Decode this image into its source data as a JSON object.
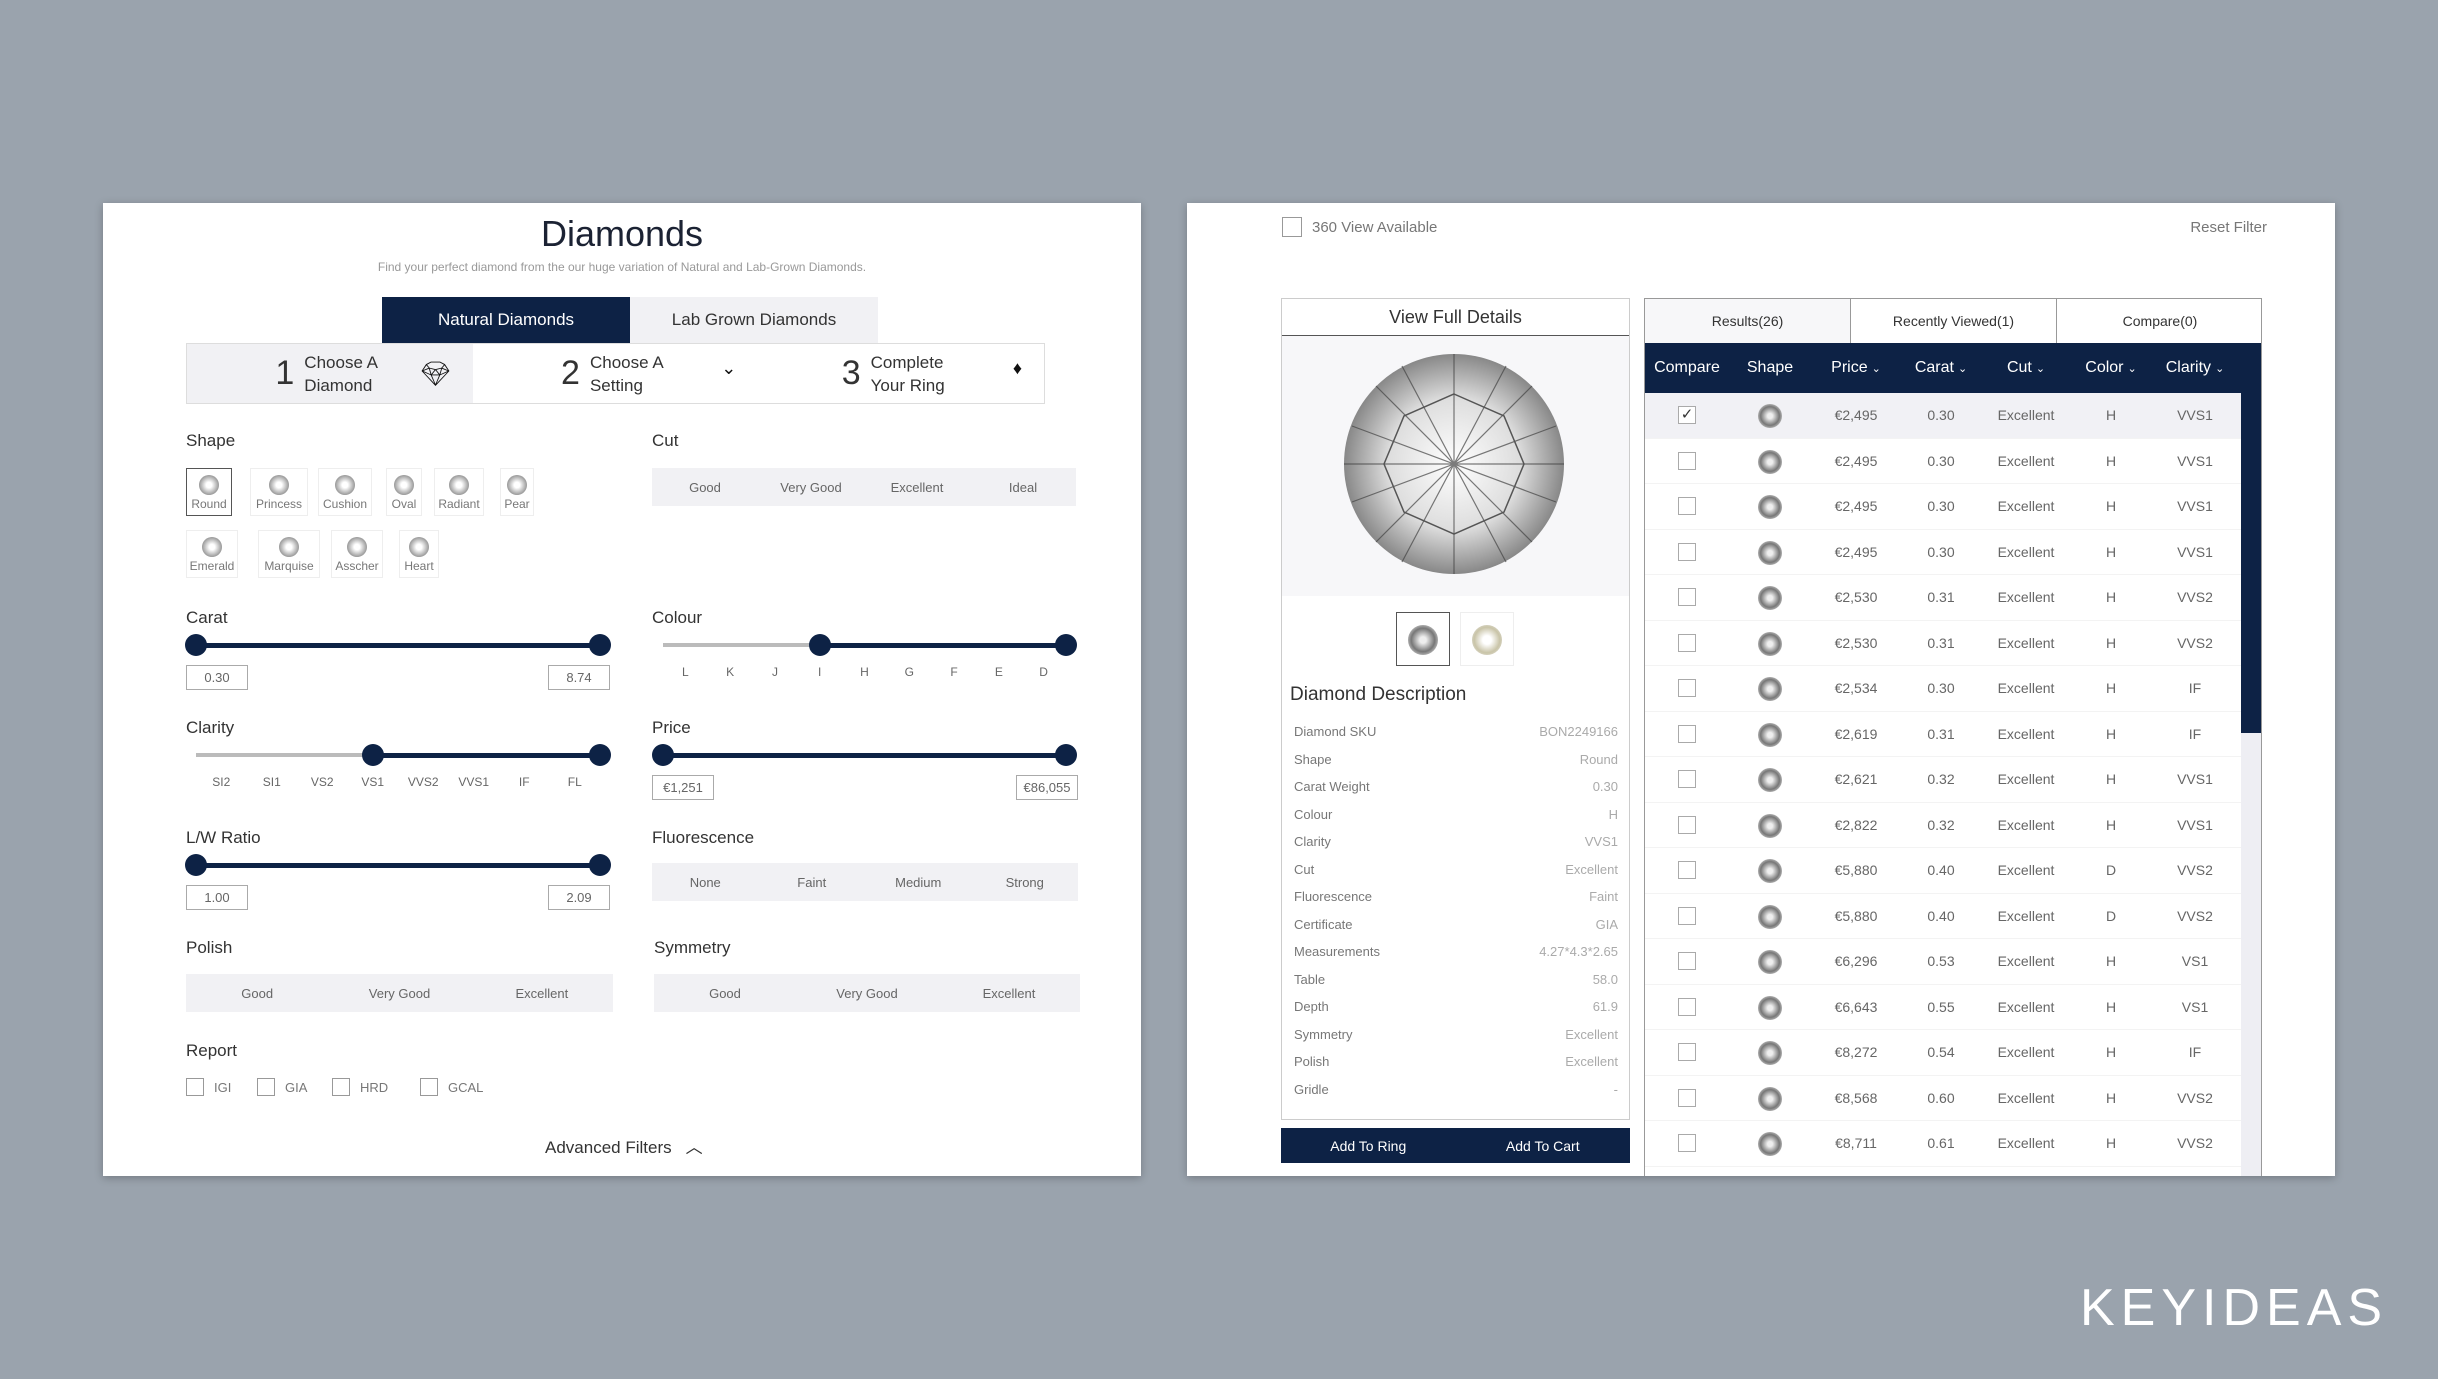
{
  "left": {
    "title": "Diamonds",
    "subtitle": "Find your perfect diamond from the our huge variation of Natural and Lab-Grown Diamonds.",
    "tabs": [
      {
        "label": "Natural Diamonds",
        "active": true
      },
      {
        "label": "Lab Grown Diamonds",
        "active": false
      }
    ],
    "steps": [
      {
        "num": "1",
        "text": "Choose A Diamond",
        "icon": "diamond-icon"
      },
      {
        "num": "2",
        "text": "Choose A Setting",
        "icon": "ring-icon"
      },
      {
        "num": "3",
        "text": "Complete Your Ring",
        "icon": "diamond-ring-icon"
      }
    ],
    "shape": {
      "label": "Shape",
      "selected": "Round",
      "items": [
        "Round",
        "Princess",
        "Cushion",
        "Oval",
        "Radiant",
        "Pear",
        "Emerald",
        "Marquise",
        "Asscher",
        "Heart"
      ]
    },
    "cut": {
      "label": "Cut",
      "options": [
        "Good",
        "Very Good",
        "Excellent",
        "Ideal"
      ]
    },
    "carat": {
      "label": "Carat",
      "min": "0.30",
      "max": "8.74"
    },
    "colour": {
      "label": "Colour",
      "ticks": [
        "L",
        "K",
        "J",
        "I",
        "H",
        "G",
        "F",
        "E",
        "D"
      ],
      "from": "I",
      "to": "D"
    },
    "clarity": {
      "label": "Clarity",
      "ticks": [
        "SI2",
        "SI1",
        "VS2",
        "VS1",
        "VVS2",
        "VVS1",
        "IF",
        "FL"
      ],
      "from": "VS1",
      "to": "FL"
    },
    "price": {
      "label": "Price",
      "min": "€1,251",
      "max": "€86,055"
    },
    "lw": {
      "label": "L/W Ratio",
      "min": "1.00",
      "max": "2.09"
    },
    "fluorescence": {
      "label": "Fluorescence",
      "options": [
        "None",
        "Faint",
        "Medium",
        "Strong"
      ]
    },
    "polish": {
      "label": "Polish",
      "options": [
        "Good",
        "Very Good",
        "Excellent"
      ]
    },
    "symmetry": {
      "label": "Symmetry",
      "options": [
        "Good",
        "Very Good",
        "Excellent"
      ]
    },
    "report": {
      "label": "Report",
      "options": [
        "IGI",
        "GIA",
        "HRD",
        "GCAL"
      ]
    },
    "advanced": "Advanced Filters"
  },
  "right": {
    "view360": "360 View Available",
    "reset": "Reset Filter",
    "details": {
      "view_full": "View Full Details",
      "heading": "Diamond Description",
      "rows": [
        [
          "Diamond SKU",
          "BON2249166"
        ],
        [
          "Shape",
          "Round"
        ],
        [
          "Carat Weight",
          "0.30"
        ],
        [
          "Colour",
          "H"
        ],
        [
          "Clarity",
          "VVS1"
        ],
        [
          "Cut",
          "Excellent"
        ],
        [
          "Fluorescence",
          "Faint"
        ],
        [
          "Certificate",
          "GIA"
        ],
        [
          "Measurements",
          "4.27*4.3*2.65"
        ],
        [
          "Table",
          "58.0"
        ],
        [
          "Depth",
          "61.9"
        ],
        [
          "Symmetry",
          "Excellent"
        ],
        [
          "Polish",
          "Excellent"
        ],
        [
          "Gridle",
          "-"
        ]
      ],
      "add_ring": "Add To Ring",
      "add_cart": "Add To Cart"
    },
    "tabs": [
      "Results(26)",
      "Recently Viewed(1)",
      "Compare(0)"
    ],
    "columns": [
      "Compare",
      "Shape",
      "Price",
      "Carat",
      "Cut",
      "Color",
      "Clarity"
    ],
    "rows": [
      {
        "checked": true,
        "price": "€2,495",
        "carat": "0.30",
        "cut": "Excellent",
        "color": "H",
        "clarity": "VVS1"
      },
      {
        "checked": false,
        "price": "€2,495",
        "carat": "0.30",
        "cut": "Excellent",
        "color": "H",
        "clarity": "VVS1"
      },
      {
        "checked": false,
        "price": "€2,495",
        "carat": "0.30",
        "cut": "Excellent",
        "color": "H",
        "clarity": "VVS1"
      },
      {
        "checked": false,
        "price": "€2,495",
        "carat": "0.30",
        "cut": "Excellent",
        "color": "H",
        "clarity": "VVS1"
      },
      {
        "checked": false,
        "price": "€2,530",
        "carat": "0.31",
        "cut": "Excellent",
        "color": "H",
        "clarity": "VVS2"
      },
      {
        "checked": false,
        "price": "€2,530",
        "carat": "0.31",
        "cut": "Excellent",
        "color": "H",
        "clarity": "VVS2"
      },
      {
        "checked": false,
        "price": "€2,534",
        "carat": "0.30",
        "cut": "Excellent",
        "color": "H",
        "clarity": "IF"
      },
      {
        "checked": false,
        "price": "€2,619",
        "carat": "0.31",
        "cut": "Excellent",
        "color": "H",
        "clarity": "IF"
      },
      {
        "checked": false,
        "price": "€2,621",
        "carat": "0.32",
        "cut": "Excellent",
        "color": "H",
        "clarity": "VVS1"
      },
      {
        "checked": false,
        "price": "€2,822",
        "carat": "0.32",
        "cut": "Excellent",
        "color": "H",
        "clarity": "VVS1"
      },
      {
        "checked": false,
        "price": "€5,880",
        "carat": "0.40",
        "cut": "Excellent",
        "color": "D",
        "clarity": "VVS2"
      },
      {
        "checked": false,
        "price": "€5,880",
        "carat": "0.40",
        "cut": "Excellent",
        "color": "D",
        "clarity": "VVS2"
      },
      {
        "checked": false,
        "price": "€6,296",
        "carat": "0.53",
        "cut": "Excellent",
        "color": "H",
        "clarity": "VS1"
      },
      {
        "checked": false,
        "price": "€6,643",
        "carat": "0.55",
        "cut": "Excellent",
        "color": "H",
        "clarity": "VS1"
      },
      {
        "checked": false,
        "price": "€8,272",
        "carat": "0.54",
        "cut": "Excellent",
        "color": "H",
        "clarity": "IF"
      },
      {
        "checked": false,
        "price": "€8,568",
        "carat": "0.60",
        "cut": "Excellent",
        "color": "H",
        "clarity": "VVS2"
      },
      {
        "checked": false,
        "price": "€8,711",
        "carat": "0.61",
        "cut": "Excellent",
        "color": "H",
        "clarity": "VVS2"
      }
    ]
  },
  "brand": "KEYIDEAS",
  "colors": {
    "accent": "#0d2245",
    "background": "#9aa3ad",
    "segment": "#f1f1f4"
  }
}
